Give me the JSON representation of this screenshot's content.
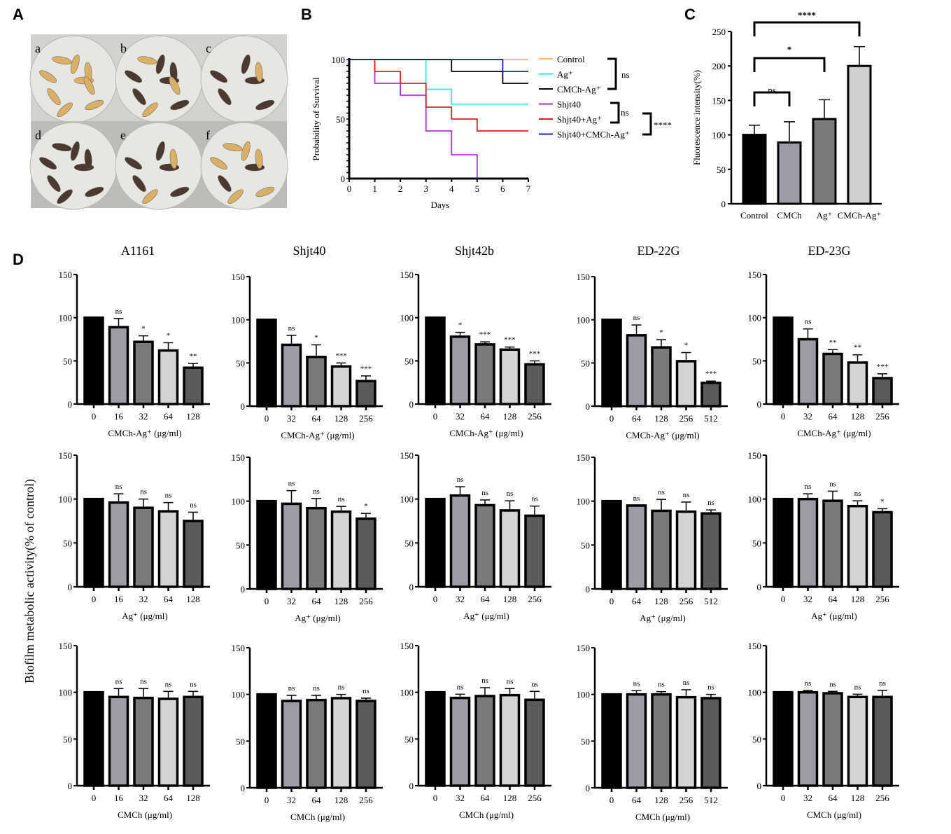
{
  "panel_labels": [
    "A",
    "B",
    "C",
    "D"
  ],
  "panel_a": {
    "dish_labels": [
      "a",
      "b",
      "c",
      "d",
      "e",
      "f"
    ],
    "larvae_dark": [
      0,
      6,
      5,
      8,
      5,
      2
    ],
    "larvae_light": [
      9,
      3,
      1,
      0,
      2,
      6
    ]
  },
  "chart_data": [
    {
      "id": "B",
      "type": "line",
      "title": "",
      "xlabel": "Days",
      "ylabel": "Probability of Survival",
      "xlim": [
        0,
        7
      ],
      "ylim": [
        0,
        100
      ],
      "xticks": [
        "0",
        "1",
        "2",
        "3",
        "4",
        "5",
        "6",
        "7"
      ],
      "yticks": [
        "0",
        "50",
        "100"
      ],
      "series": [
        {
          "name": "Control",
          "color": "#f5b27a",
          "steps": [
            [
              0,
              100
            ],
            [
              7,
              100
            ]
          ]
        },
        {
          "name": "Ag⁺",
          "color": "#33e6e6",
          "steps": [
            [
              0,
              100
            ],
            [
              3,
              75
            ],
            [
              4,
              62.5
            ],
            [
              7,
              62.5
            ]
          ]
        },
        {
          "name": "CMCh-Ag⁺",
          "color": "#000000",
          "steps": [
            [
              0,
              100
            ],
            [
              4,
              90
            ],
            [
              6,
              80
            ],
            [
              7,
              80
            ]
          ]
        },
        {
          "name": "Shjt40",
          "color": "#b030e0",
          "steps": [
            [
              0,
              100
            ],
            [
              1,
              80
            ],
            [
              2,
              70
            ],
            [
              3,
              40
            ],
            [
              4,
              20
            ],
            [
              5,
              0
            ]
          ]
        },
        {
          "name": "Shjt40+Ag⁺",
          "color": "#e02020",
          "steps": [
            [
              0,
              100
            ],
            [
              1,
              90
            ],
            [
              2,
              80
            ],
            [
              3,
              60
            ],
            [
              4,
              50
            ],
            [
              5,
              40
            ],
            [
              7,
              40
            ]
          ]
        },
        {
          "name": "Shjt40+CMCh-Ag⁺",
          "color": "#1020c0",
          "steps": [
            [
              0,
              100
            ],
            [
              6,
              90
            ],
            [
              7,
              90
            ]
          ]
        }
      ],
      "significance": [
        {
          "groups": "Control, Ag⁺, CMCh-Ag⁺",
          "label": "ns"
        },
        {
          "groups": "Shjt40, Shjt40+Ag⁺",
          "label": "ns"
        },
        {
          "groups": "Shjt40+Ag⁺ vs Shjt40+CMCh-Ag⁺",
          "label": "****"
        }
      ]
    },
    {
      "id": "C",
      "type": "bar",
      "title": "",
      "xlabel": "",
      "ylabel": "Fluorescence intensity(%)",
      "ylim": [
        0,
        250
      ],
      "yticks": [
        "0",
        "50",
        "100",
        "150",
        "200",
        "250"
      ],
      "categories": [
        "Control",
        "CMCh",
        "Ag⁺",
        "CMCh-Ag⁺"
      ],
      "values": [
        100,
        89,
        123,
        200
      ],
      "errors": [
        14,
        30,
        28,
        28
      ],
      "colors": [
        "#000000",
        "#9c9ca6",
        "#7a7a7a",
        "#d0d0d0"
      ],
      "significance": [
        {
          "pair": [
            0,
            1
          ],
          "label": "ns"
        },
        {
          "pair": [
            0,
            2
          ],
          "label": "*"
        },
        {
          "pair": [
            0,
            3
          ],
          "label": "****"
        }
      ]
    },
    {
      "id": "D",
      "type": "bar",
      "ylabel": "Biofilm metabolic activity(% of control)",
      "ylim": [
        0,
        150
      ],
      "yticks": [
        "0",
        "50",
        "100",
        "150"
      ],
      "strains": [
        "A1161",
        "Shjt40",
        "Shjt42b",
        "ED-22G",
        "ED-23G"
      ],
      "rows": [
        {
          "xlabel": "CMCh-Ag⁺ (μg/ml)",
          "charts": [
            {
              "categories": [
                "0",
                "16",
                "32",
                "64",
                "128"
              ],
              "values": [
                100,
                89,
                72,
                62,
                42
              ],
              "errors": [
                0,
                10,
                7,
                9,
                5
              ],
              "sig": [
                "",
                "ns",
                "*",
                "*",
                "**"
              ]
            },
            {
              "categories": [
                "0",
                "32",
                "64",
                "128",
                "256"
              ],
              "values": [
                100,
                71,
                57,
                46,
                29
              ],
              "errors": [
                0,
                11,
                14,
                4,
                6
              ],
              "sig": [
                "",
                "ns",
                "*",
                "***",
                "***"
              ]
            },
            {
              "categories": [
                "0",
                "32",
                "64",
                "128",
                "256"
              ],
              "values": [
                100,
                78,
                69,
                63,
                46
              ],
              "errors": [
                0,
                5,
                3,
                3,
                4
              ],
              "sig": [
                "",
                "*",
                "***",
                "***",
                "***"
              ]
            },
            {
              "categories": [
                "0",
                "64",
                "128",
                "256",
                "512"
              ],
              "values": [
                100,
                82,
                68,
                52,
                27
              ],
              "errors": [
                0,
                12,
                9,
                10,
                2
              ],
              "sig": [
                "",
                "ns",
                "*",
                "*",
                "***"
              ]
            },
            {
              "categories": [
                "0",
                "32",
                "64",
                "128",
                "256"
              ],
              "values": [
                100,
                75,
                58,
                48,
                30
              ],
              "errors": [
                0,
                12,
                5,
                9,
                5
              ],
              "sig": [
                "",
                "ns",
                "**",
                "**",
                "***"
              ]
            }
          ]
        },
        {
          "xlabel": "Ag⁺ (μg/ml)",
          "charts": [
            {
              "categories": [
                "0",
                "16",
                "32",
                "64",
                "128"
              ],
              "values": [
                100,
                96,
                90,
                86,
                75
              ],
              "errors": [
                0,
                10,
                10,
                10,
                10
              ],
              "sig": [
                "",
                "ns",
                "ns",
                "ns",
                "ns"
              ]
            },
            {
              "categories": [
                "0",
                "32",
                "64",
                "128",
                "256"
              ],
              "values": [
                100,
                97,
                92,
                88,
                80
              ],
              "errors": [
                0,
                15,
                11,
                6,
                6
              ],
              "sig": [
                "",
                "ns",
                "ns",
                "ns",
                "*"
              ]
            },
            {
              "categories": [
                "0",
                "32",
                "64",
                "128",
                "256"
              ],
              "values": [
                100,
                104,
                93,
                87,
                81
              ],
              "errors": [
                0,
                10,
                6,
                11,
                11
              ],
              "sig": [
                "",
                "ns",
                "ns",
                "ns",
                "ns"
              ]
            },
            {
              "categories": [
                "0",
                "64",
                "128",
                "256",
                "512"
              ],
              "values": [
                100,
                95,
                89,
                88,
                86
              ],
              "errors": [
                0,
                0,
                13,
                11,
                4
              ],
              "sig": [
                "",
                "ns",
                "ns",
                "ns",
                "ns"
              ]
            },
            {
              "categories": [
                "0",
                "32",
                "64",
                "128",
                "256"
              ],
              "values": [
                100,
                100,
                98,
                92,
                85
              ],
              "errors": [
                0,
                6,
                11,
                6,
                4
              ],
              "sig": [
                "",
                "ns",
                "ns",
                "ns",
                "*"
              ]
            }
          ]
        },
        {
          "xlabel": "CMCh (μg/ml)",
          "charts": [
            {
              "categories": [
                "0",
                "16",
                "32",
                "64",
                "128"
              ],
              "values": [
                100,
                95,
                94,
                93,
                95
              ],
              "errors": [
                0,
                9,
                10,
                8,
                6
              ],
              "sig": [
                "",
                "ns",
                "ns",
                "ns",
                "ns"
              ]
            },
            {
              "categories": [
                "0",
                "32",
                "64",
                "128",
                "256"
              ],
              "values": [
                100,
                93,
                94,
                96,
                93
              ],
              "errors": [
                0,
                6,
                5,
                4,
                3
              ],
              "sig": [
                "",
                "ns",
                "ns",
                "ns",
                "ns"
              ]
            },
            {
              "categories": [
                "0",
                "32",
                "64",
                "128",
                "256"
              ],
              "values": [
                100,
                94,
                96,
                97,
                92
              ],
              "errors": [
                0,
                4,
                9,
                7,
                9
              ],
              "sig": [
                "",
                "ns",
                "ns",
                "ns",
                "ns"
              ]
            },
            {
              "categories": [
                "0",
                "64",
                "128",
                "256",
                "512"
              ],
              "values": [
                100,
                100,
                100,
                97,
                96
              ],
              "errors": [
                0,
                4,
                3,
                8,
                4
              ],
              "sig": [
                "",
                "ns",
                "ns",
                "ns",
                "ns"
              ]
            },
            {
              "categories": [
                "0",
                "32",
                "64",
                "128",
                "256"
              ],
              "values": [
                100,
                100,
                99,
                95,
                95
              ],
              "errors": [
                0,
                2,
                2,
                3,
                7
              ],
              "sig": [
                "",
                "ns",
                "ns",
                "ns",
                "ns"
              ]
            }
          ]
        }
      ],
      "bar_colors": [
        "#000000",
        "#9c9ca6",
        "#7a7a7a",
        "#d4d4d4",
        "#5a5a5a"
      ]
    }
  ]
}
